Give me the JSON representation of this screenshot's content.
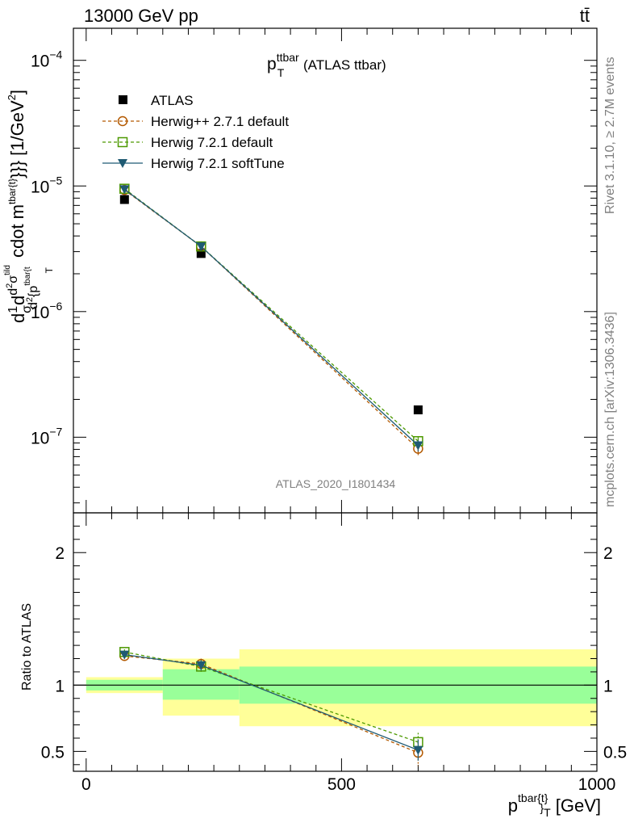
{
  "header": {
    "left": "13000 GeV pp",
    "right": "tt̄"
  },
  "side_text": {
    "rivet": "Rivet 3.1.10, ≥ 2.7M events",
    "mcplots": "mcplots.cern.ch [arXiv:1306.3436]"
  },
  "watermark": "ATLAS_2020_I1801434",
  "colors": {
    "atlas": "#000000",
    "herwigpp": "#b35900",
    "herwig721": "#4d9900",
    "softtune": "#1f5a73",
    "band_inner": "#99ff99",
    "band_outer": "#ffff99"
  },
  "chart_data": [
    {
      "type": "scatter",
      "title_main": "p",
      "title_sup": "ttbar",
      "title_sub": "T",
      "title_rest": " (ATLAS ttbar)",
      "ylabel_parts": {
        "d1": "d",
        "one": "1",
        "sigma": "σ",
        "d2": "d",
        "d3": "d",
        "sq1": "2",
        "sigma2": "σ",
        "sup_tilde": "tild",
        "d4": "d",
        "sq2": "2",
        "p": "{p",
        "sup_tbar": "tbar{t",
        "sub_t": "T",
        "mid": "cdot m",
        "sup_tbar2": "tbar{t}",
        "end": "}}} [1/GeV",
        "end_sup": "2",
        "close": "]"
      },
      "yscale": "log",
      "ylim": [
        2.5e-08,
        0.00018
      ],
      "xlim": [
        -25,
        1000
      ],
      "ytick_labels": [
        {
          "base": "10",
          "exp": "−4",
          "v": 0.0001
        },
        {
          "base": "10",
          "exp": "−5",
          "v": 1e-05
        },
        {
          "base": "10",
          "exp": "−6",
          "v": 1e-06
        },
        {
          "base": "10",
          "exp": "−7",
          "v": 1e-07
        }
      ],
      "x": [
        75,
        225,
        650
      ],
      "series": [
        {
          "name": "ATLAS",
          "values": [
            7.8e-06,
            2.9e-06,
            1.65e-07
          ]
        },
        {
          "name": "Herwig++ 2.7.1 default",
          "values": [
            9.3e-06,
            3.3e-06,
            8.1e-08
          ],
          "errors": [
            3e-07,
            1.5e-07,
            9e-09
          ]
        },
        {
          "name": "Herwig 7.2.1 default",
          "values": [
            9.5e-06,
            3.3e-06,
            9.3e-08
          ],
          "errors": [
            3e-07,
            1.5e-07,
            9e-09
          ]
        },
        {
          "name": "Herwig 7.2.1 softTune",
          "values": [
            9.4e-06,
            3.3e-06,
            8.6e-08
          ],
          "errors": [
            3e-07,
            1.5e-07,
            9e-09
          ]
        }
      ]
    },
    {
      "type": "scatter",
      "ylabel": "Ratio to ATLAS",
      "xlabel_main": "p",
      "xlabel_sup": "tbar{t}",
      "xlabel_sub": "}",
      "xlabel_sub2": "T",
      "xlabel_unit": " [GeV]",
      "xlim": [
        -25,
        1000
      ],
      "ylim": [
        0.35,
        2.3
      ],
      "xtick_labels": [
        {
          "label": "0",
          "v": 0
        },
        {
          "label": "500",
          "v": 500
        },
        {
          "label": "1000",
          "v": 1000
        }
      ],
      "ytick_labels": [
        {
          "label": "0.5",
          "v": 0.5
        },
        {
          "label": "1",
          "v": 1
        },
        {
          "label": "2",
          "v": 2
        }
      ],
      "bins": [
        {
          "lo": 0,
          "hi": 150,
          "inner": [
            0.96,
            1.04
          ],
          "outer": [
            0.94,
            1.06
          ]
        },
        {
          "lo": 150,
          "hi": 300,
          "inner": [
            0.89,
            1.12
          ],
          "outer": [
            0.77,
            1.2
          ]
        },
        {
          "lo": 300,
          "hi": 1000,
          "inner": [
            0.86,
            1.14
          ],
          "outer": [
            0.69,
            1.27
          ]
        }
      ],
      "x": [
        75,
        225,
        650
      ],
      "series": [
        {
          "name": "Herwig++ 2.7.1 default",
          "values": [
            1.22,
            1.16,
            0.49
          ],
          "errors": [
            0.02,
            0.04,
            0.1
          ]
        },
        {
          "name": "Herwig 7.2.1 default",
          "values": [
            1.25,
            1.14,
            0.57
          ],
          "errors": [
            0.02,
            0.04,
            0.07
          ]
        },
        {
          "name": "Herwig 7.2.1 softTune",
          "values": [
            1.23,
            1.15,
            0.51
          ],
          "errors": [
            0.02,
            0.04,
            0.08
          ]
        }
      ]
    }
  ]
}
